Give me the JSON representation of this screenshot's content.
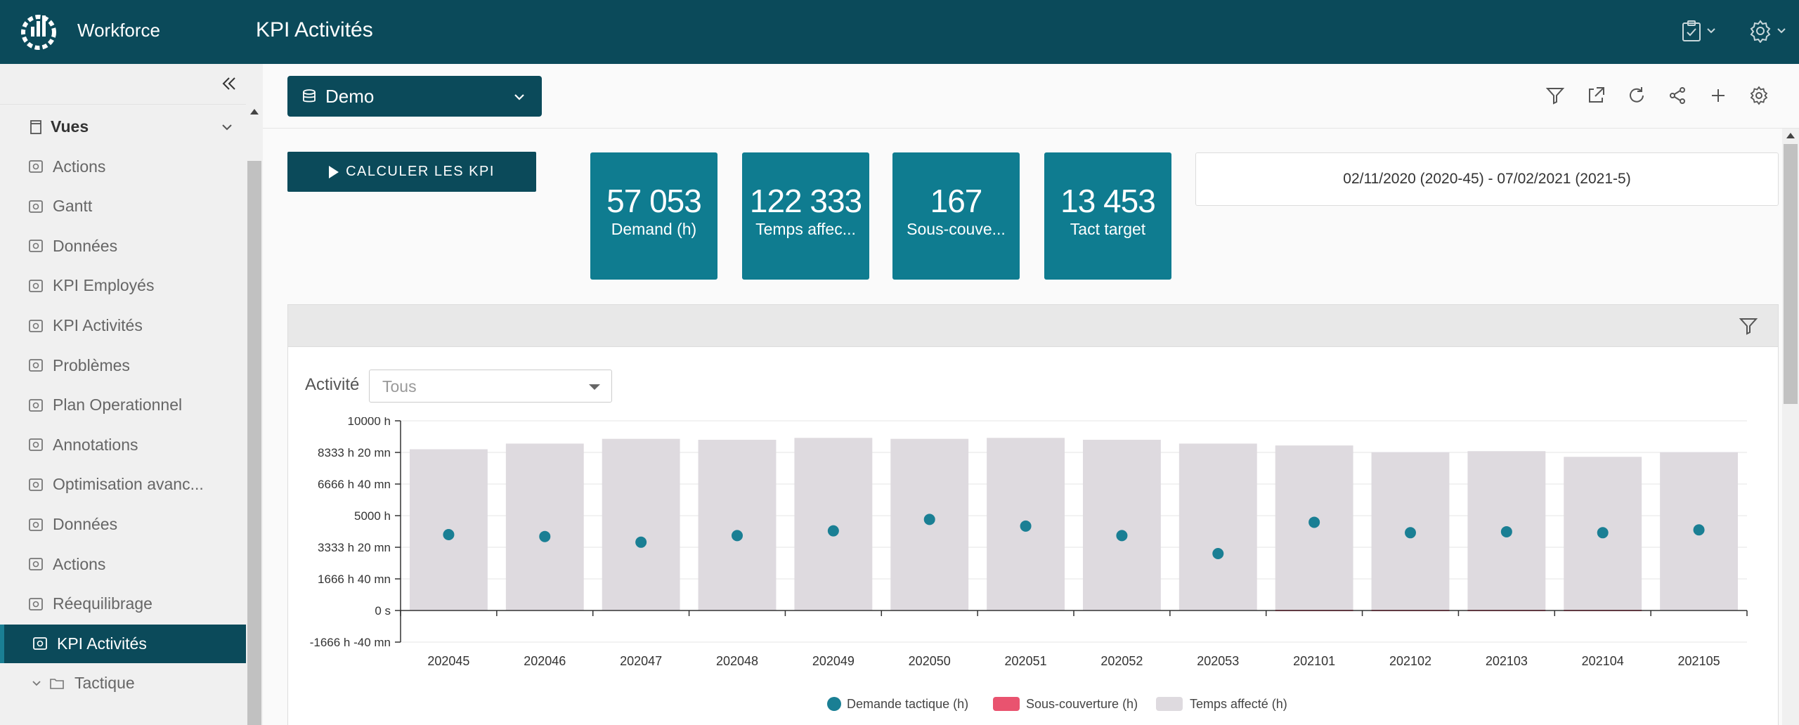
{
  "header": {
    "app_name": "Workforce",
    "page_title": "KPI Activités"
  },
  "sidebar": {
    "items": [
      {
        "label": "Vues",
        "type": "header"
      },
      {
        "label": "Actions"
      },
      {
        "label": "Gantt"
      },
      {
        "label": "Données"
      },
      {
        "label": "KPI Employés"
      },
      {
        "label": "KPI Activités"
      },
      {
        "label": "Problèmes"
      },
      {
        "label": "Plan Operationnel"
      },
      {
        "label": "Annotations"
      },
      {
        "label": "Optimisation avanc..."
      },
      {
        "label": "Données"
      },
      {
        "label": "Actions"
      },
      {
        "label": "Réequilibrage"
      },
      {
        "label": "KPI Activités",
        "active": true
      },
      {
        "label": "Tactique",
        "type": "folder"
      }
    ]
  },
  "toolbar": {
    "database": "Demo"
  },
  "calc_button": "CALCULER LES KPI",
  "kpis": [
    {
      "value": "57 053",
      "label": "Demand (h)"
    },
    {
      "value": "122 333",
      "label": "Temps affec..."
    },
    {
      "value": "167",
      "label": "Sous-couve..."
    },
    {
      "value": "13 453",
      "label": "Tact target"
    }
  ],
  "date_range": "02/11/2020 (2020-45) - 07/02/2021 (2021-5)",
  "filter": {
    "label": "Activité",
    "value": "Tous"
  },
  "colors": {
    "primary": "#0b4a5a",
    "kpi_tile": "#0f7c90",
    "bar": "#dedadf",
    "dot": "#1a7f94",
    "under": "#e9536f"
  },
  "chart_data": {
    "type": "bar",
    "categories": [
      "202045",
      "202046",
      "202047",
      "202048",
      "202049",
      "202050",
      "202051",
      "202052",
      "202053",
      "202101",
      "202102",
      "202103",
      "202104",
      "202105"
    ],
    "y_tick_labels": [
      "10000 h",
      "8333 h 20 mn",
      "6666 h 40 mn",
      "5000 h",
      "3333 h 20 mn",
      "1666 h 40 mn",
      "0 s",
      "-1666 h -40 mn"
    ],
    "ylim": [
      -1666.67,
      10000
    ],
    "grid": true,
    "legend_position": "bottom",
    "series": [
      {
        "name": "Temps affecté (h)",
        "type": "bar",
        "values": [
          8500,
          8800,
          9050,
          9000,
          9100,
          9050,
          9100,
          9000,
          8800,
          8700,
          8350,
          8400,
          8100,
          8350
        ]
      },
      {
        "name": "Sous-couverture (h)",
        "type": "bar",
        "values": [
          0,
          0,
          0,
          0,
          0,
          0,
          0,
          0,
          0,
          70,
          30,
          60,
          50,
          0
        ]
      },
      {
        "name": "Demande tactique (h)",
        "type": "scatter",
        "values": [
          4000,
          3900,
          3600,
          3950,
          4200,
          4800,
          4450,
          3950,
          3000,
          4650,
          4100,
          4150,
          4100,
          4250
        ]
      }
    ]
  }
}
